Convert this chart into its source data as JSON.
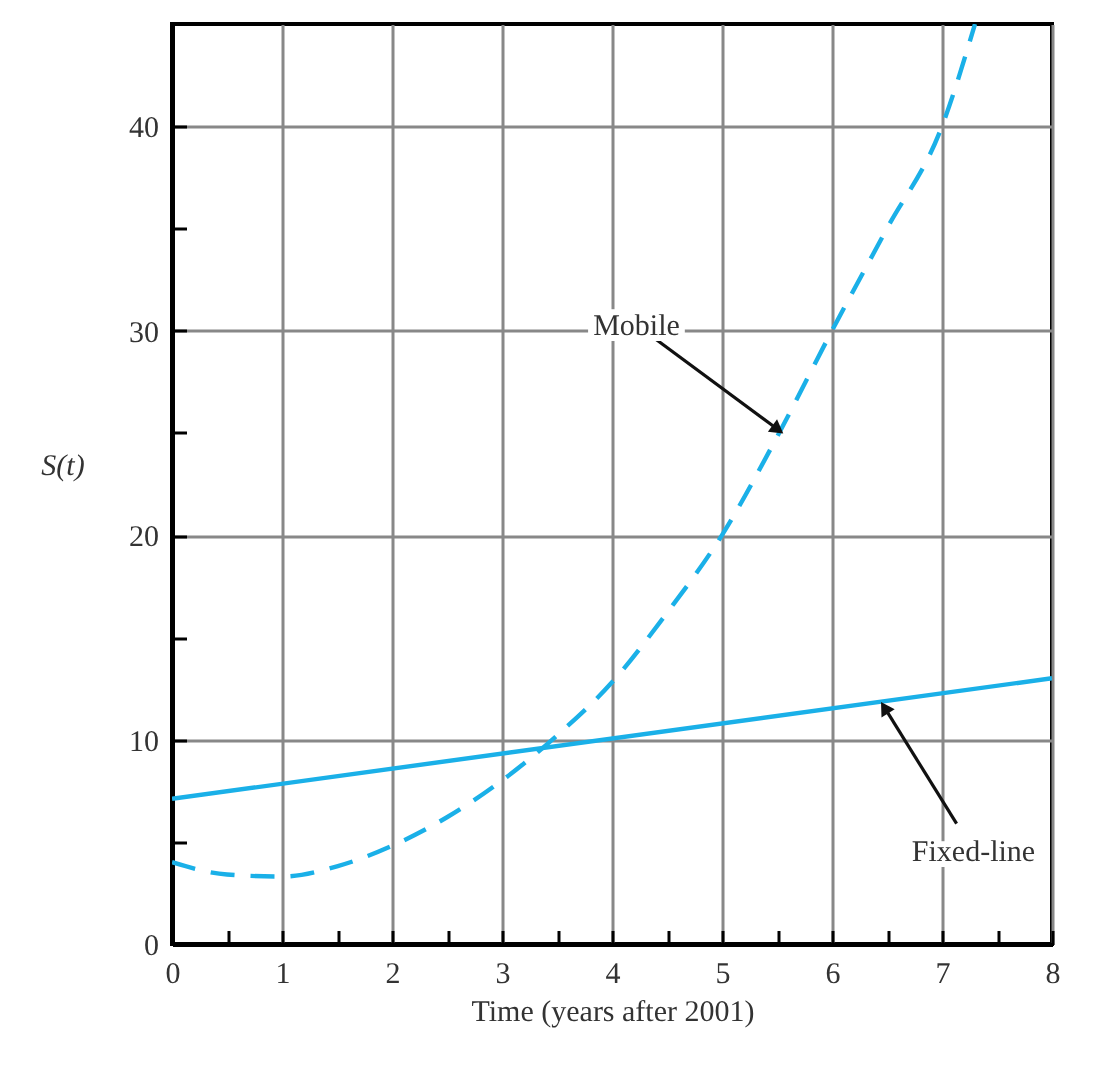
{
  "chart_data": {
    "type": "line",
    "xlabel": "Time (years after 2001)",
    "ylabel": "S(t)",
    "xlim": [
      0,
      8
    ],
    "ylim": [
      0,
      45
    ],
    "xticks": [
      0,
      {
        "value": 0.5,
        "label": null
      },
      1,
      {
        "value": 1.5,
        "label": null
      },
      2,
      {
        "value": 2.5,
        "label": null
      },
      3,
      {
        "value": 3.5,
        "label": null
      },
      4,
      {
        "value": 4.5,
        "label": null
      },
      5,
      {
        "value": 5.5,
        "label": null
      },
      6,
      {
        "value": 6.5,
        "label": null
      },
      7,
      {
        "value": 7.5,
        "label": null
      },
      8
    ],
    "yticks": [
      0,
      {
        "value": 5,
        "label": null
      },
      10,
      {
        "value": 15,
        "label": null
      },
      20,
      {
        "value": 25,
        "label": null
      },
      30,
      {
        "value": 35,
        "label": null
      },
      40
    ],
    "grid": true,
    "series": [
      {
        "color": "#1ab0e8",
        "line_style": "dashed",
        "x": [
          0,
          0.5,
          1,
          1.5,
          2,
          2.5,
          3,
          3.5,
          4,
          4.5,
          5,
          5.5,
          6,
          6.5,
          7,
          7.3
        ],
        "values": [
          4,
          3.4,
          3.3,
          3.8,
          4.8,
          6.2,
          8,
          10.2,
          12.8,
          16.2,
          20,
          24.8,
          30,
          35,
          40,
          45
        ]
      },
      {
        "color": "#1ab0e8",
        "line_style": "solid",
        "x": [
          0,
          8
        ],
        "values": [
          7.1,
          13
        ]
      }
    ],
    "annotations": [
      {
        "text": "Mobile",
        "x": 5.55,
        "y": 25
      },
      {
        "text": "Fixed-line",
        "x": 6.45,
        "y": 11.8
      }
    ]
  }
}
